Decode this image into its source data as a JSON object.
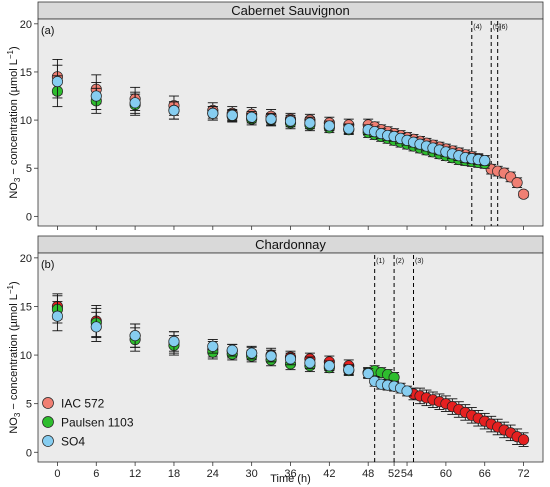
{
  "chart_data": [
    {
      "type": "scatter",
      "panel_tag": "(a)",
      "strip_title": "Cabernet Sauvignon",
      "xlabel": "",
      "ylabel": "NO3 − concentration (µmol L−1)",
      "ylabel_parts": {
        "pre": "NO",
        "sub": "3",
        "mid": " − concentration (µmol L",
        "sup": "−1",
        "post": ")"
      },
      "xlim": [
        -3,
        75
      ],
      "ylim": [
        -1,
        20.5
      ],
      "xticks": [
        0,
        6,
        12,
        18,
        24,
        30,
        36,
        42,
        48,
        54,
        60,
        66,
        72
      ],
      "xtick_labels": [
        "0",
        "6",
        "12",
        "18",
        "24",
        "30",
        "36",
        "42",
        "48",
        "54",
        "60",
        "66",
        "72"
      ],
      "yticks": [
        0,
        5,
        10,
        15,
        20
      ],
      "ytick_labels": [
        "0",
        "5",
        "10",
        "15",
        "20"
      ],
      "vlines": [
        {
          "x": 64,
          "label": "(4)"
        },
        {
          "x": 67,
          "label": "(5)"
        },
        {
          "x": 68,
          "label": "(6)"
        }
      ],
      "series": [
        {
          "name": "IAC 572",
          "color": "#f07f73",
          "x": [
            0,
            6,
            12,
            18,
            24,
            27,
            30,
            33,
            36,
            39,
            42,
            45,
            48,
            49,
            50,
            51,
            52,
            53,
            54,
            55,
            56,
            57,
            58,
            59,
            60,
            61,
            62,
            63,
            64,
            65,
            66,
            67,
            68,
            69,
            70,
            71,
            72
          ],
          "y": [
            14.5,
            13.2,
            12.2,
            11.5,
            11.0,
            10.7,
            10.6,
            10.4,
            10.1,
            10.0,
            9.7,
            9.5,
            9.5,
            9.3,
            9.0,
            8.8,
            8.6,
            8.4,
            8.2,
            8.0,
            7.8,
            7.6,
            7.4,
            7.2,
            7.0,
            6.8,
            6.6,
            6.4,
            6.2,
            6.0,
            5.8,
            4.9,
            4.7,
            4.5,
            4.1,
            3.5,
            2.3
          ],
          "err": [
            1.8,
            1.5,
            1.2,
            1.0,
            0.8,
            0.7,
            0.7,
            0.7,
            0.6,
            0.6,
            0.6,
            0.6,
            0.6,
            0.5,
            0.5,
            0.5,
            0.5,
            0.5,
            0.5,
            0.5,
            0.5,
            0.5,
            0.5,
            0.5,
            0.5,
            0.5,
            0.5,
            0.5,
            0.5,
            0.5,
            0.5,
            0.5,
            0.5,
            0.5,
            0.5,
            0.5,
            0.3
          ]
        },
        {
          "name": "Paulsen 1103",
          "color": "#2ebd2e",
          "x": [
            0,
            6,
            12,
            18,
            24,
            27,
            30,
            33,
            36,
            39,
            42,
            45,
            48,
            49,
            50,
            51,
            52,
            53,
            54,
            55,
            56,
            57,
            58,
            59,
            60,
            61,
            62,
            63,
            64,
            65,
            66
          ],
          "y": [
            13.0,
            12.0,
            11.6,
            11.0,
            10.7,
            10.4,
            10.1,
            10.0,
            9.7,
            9.5,
            9.2,
            9.0,
            8.7,
            8.5,
            8.3,
            8.1,
            7.9,
            7.7,
            7.5,
            7.3,
            7.1,
            6.9,
            6.7,
            6.5,
            6.3,
            6.1,
            5.9,
            5.8,
            5.7,
            5.6,
            5.5
          ],
          "err": [
            1.6,
            1.3,
            1.1,
            0.9,
            0.7,
            0.6,
            0.6,
            0.6,
            0.6,
            0.6,
            0.5,
            0.5,
            0.5,
            0.5,
            0.5,
            0.5,
            0.5,
            0.5,
            0.5,
            0.5,
            0.5,
            0.5,
            0.5,
            0.5,
            0.5,
            0.5,
            0.5,
            0.5,
            0.5,
            0.5,
            0.5
          ]
        },
        {
          "name": "SO4",
          "color": "#86cdf0",
          "x": [
            0,
            6,
            12,
            18,
            24,
            27,
            30,
            33,
            36,
            39,
            42,
            45,
            48,
            49,
            50,
            51,
            52,
            53,
            54,
            55,
            56,
            57,
            58,
            59,
            60,
            61,
            62,
            63,
            64,
            65,
            66
          ],
          "y": [
            14.0,
            12.5,
            11.8,
            11.0,
            10.7,
            10.5,
            10.3,
            10.1,
            9.9,
            9.7,
            9.4,
            9.1,
            9.0,
            8.8,
            8.6,
            8.4,
            8.3,
            8.1,
            7.9,
            7.7,
            7.5,
            7.3,
            7.1,
            6.9,
            6.7,
            6.5,
            6.3,
            6.1,
            6.0,
            5.9,
            5.8
          ],
          "err": [
            1.7,
            1.4,
            1.1,
            0.9,
            0.7,
            0.6,
            0.6,
            0.6,
            0.6,
            0.6,
            0.5,
            0.5,
            0.5,
            0.5,
            0.5,
            0.5,
            0.5,
            0.5,
            0.5,
            0.5,
            0.5,
            0.5,
            0.5,
            0.5,
            0.5,
            0.5,
            0.5,
            0.5,
            0.5,
            0.5,
            0.5
          ]
        }
      ]
    },
    {
      "type": "scatter",
      "panel_tag": "(b)",
      "strip_title": "Chardonnay",
      "xlabel": "Time (h)",
      "ylabel": "NO3 − concentration (µmol L−1)",
      "ylabel_parts": {
        "pre": "NO",
        "sub": "3",
        "mid": " − concentration (µmol L",
        "sup": "−1",
        "post": ")"
      },
      "xlim": [
        -3,
        75
      ],
      "ylim": [
        -1,
        20.5
      ],
      "xticks": [
        0,
        6,
        12,
        18,
        24,
        30,
        36,
        42,
        48,
        54,
        60,
        66,
        72
      ],
      "xtick_labels": [
        "0",
        "6",
        "12",
        "18",
        "24",
        "30",
        "36",
        "42",
        "48",
        "54",
        "60",
        "66",
        "72"
      ],
      "extra_xticks": [
        52
      ],
      "extra_xtick_labels": [
        "52"
      ],
      "yticks": [
        0,
        5,
        10,
        15,
        20
      ],
      "ytick_labels": [
        "0",
        "5",
        "10",
        "15",
        "20"
      ],
      "vlines": [
        {
          "x": 49,
          "label": "(1)"
        },
        {
          "x": 52,
          "label": "(2)"
        },
        {
          "x": 55,
          "label": "(3)"
        }
      ],
      "series": [
        {
          "name": "IAC 572",
          "color": "#e52020",
          "x": [
            0,
            6,
            12,
            18,
            24,
            27,
            30,
            33,
            36,
            39,
            42,
            45,
            48,
            55,
            56,
            57,
            58,
            59,
            60,
            61,
            62,
            63,
            64,
            65,
            66,
            67,
            68,
            69,
            70,
            71,
            72
          ],
          "y": [
            15.0,
            13.5,
            12.0,
            11.3,
            10.6,
            10.4,
            10.2,
            10.0,
            9.8,
            9.6,
            9.3,
            8.9,
            8.2,
            6.0,
            5.8,
            5.6,
            5.4,
            5.2,
            5.0,
            4.7,
            4.4,
            4.1,
            3.8,
            3.5,
            3.2,
            2.9,
            2.6,
            2.3,
            2.0,
            1.6,
            1.3
          ],
          "err": [
            1.3,
            1.6,
            1.2,
            1.1,
            0.8,
            0.7,
            0.7,
            0.7,
            0.6,
            0.6,
            0.6,
            0.6,
            0.5,
            0.6,
            0.8,
            0.8,
            0.8,
            0.8,
            0.8,
            0.8,
            0.8,
            0.8,
            0.8,
            0.8,
            0.8,
            0.8,
            0.8,
            0.8,
            0.8,
            0.8,
            0.7
          ]
        },
        {
          "name": "Paulsen 1103",
          "color": "#2ebd2e",
          "x": [
            0,
            6,
            12,
            18,
            24,
            27,
            30,
            33,
            36,
            39,
            42,
            45,
            48,
            49,
            50,
            51,
            52
          ],
          "y": [
            14.7,
            13.3,
            11.6,
            11.0,
            10.3,
            10.1,
            9.9,
            9.5,
            9.1,
            8.9,
            8.7,
            8.4,
            8.2,
            8.4,
            8.2,
            8.0,
            7.7
          ],
          "err": [
            1.4,
            1.5,
            1.2,
            1.0,
            0.7,
            0.6,
            0.6,
            0.6,
            0.6,
            0.6,
            0.5,
            0.5,
            0.5,
            0.5,
            0.5,
            0.5,
            0.5
          ]
        },
        {
          "name": "SO4",
          "color": "#86cdf0",
          "x": [
            0,
            6,
            12,
            18,
            24,
            27,
            30,
            33,
            36,
            39,
            42,
            45,
            48,
            49,
            50,
            51,
            52,
            53,
            54
          ],
          "y": [
            14.0,
            12.9,
            12.0,
            11.4,
            10.9,
            10.5,
            10.2,
            9.9,
            9.6,
            9.2,
            8.9,
            8.5,
            8.1,
            7.3,
            7.0,
            6.9,
            6.8,
            6.6,
            6.3
          ],
          "err": [
            1.5,
            1.5,
            1.2,
            1.0,
            0.7,
            0.6,
            0.6,
            0.6,
            0.6,
            0.6,
            0.5,
            0.5,
            0.5,
            0.5,
            0.5,
            0.5,
            0.5,
            0.5,
            0.5
          ]
        }
      ]
    }
  ],
  "legend": {
    "placement": "bottom-left",
    "entries": [
      {
        "name": "IAC 572",
        "color": "#f07f73"
      },
      {
        "name": "Paulsen 1103",
        "color": "#2ebd2e"
      },
      {
        "name": "SO4",
        "color": "#86cdf0"
      }
    ]
  },
  "colors": {
    "panel_bg": "#ebebeb",
    "strip_bg": "#d9d9d9",
    "vline": "#000000"
  }
}
